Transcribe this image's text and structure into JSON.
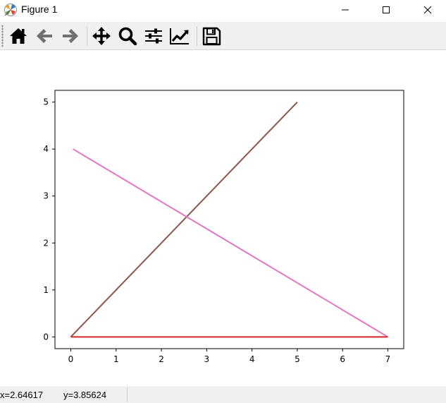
{
  "window": {
    "title": "Figure 1",
    "app_icon": "matplotlib-logo-icon",
    "controls": [
      "minimize-icon",
      "maximize-icon",
      "close-icon"
    ]
  },
  "toolbar": {
    "buttons": [
      {
        "name": "home",
        "icon": "home-icon"
      },
      {
        "name": "back",
        "icon": "arrow-left-icon"
      },
      {
        "name": "forward",
        "icon": "arrow-right-icon"
      },
      {
        "name": "pan",
        "icon": "move-arrows-icon"
      },
      {
        "name": "zoom",
        "icon": "magnifier-icon"
      },
      {
        "name": "configure-subplots",
        "icon": "sliders-icon"
      },
      {
        "name": "edit-axes",
        "icon": "line-chart-icon"
      },
      {
        "name": "save",
        "icon": "floppy-disk-icon"
      }
    ]
  },
  "status": {
    "x_text": "x=2.64617",
    "y_text": "y=3.85624"
  },
  "chart_data": {
    "type": "line",
    "title": "",
    "xlabel": "",
    "ylabel": "",
    "xlim": [
      -0.35,
      7.35
    ],
    "ylim": [
      -0.25,
      5.25
    ],
    "xticks": [
      0,
      1,
      2,
      3,
      4,
      5,
      6,
      7
    ],
    "yticks": [
      0,
      1,
      2,
      3,
      4,
      5
    ],
    "grid": false,
    "legend": "none",
    "series": [
      {
        "color": "#8c564b",
        "x": [
          0,
          5
        ],
        "y": [
          0,
          5
        ]
      },
      {
        "color": "#e377c2",
        "x": [
          0.05,
          7
        ],
        "y": [
          4,
          0
        ]
      },
      {
        "color": "#d62728",
        "x": [
          0,
          7
        ],
        "y": [
          0,
          0
        ]
      }
    ]
  }
}
